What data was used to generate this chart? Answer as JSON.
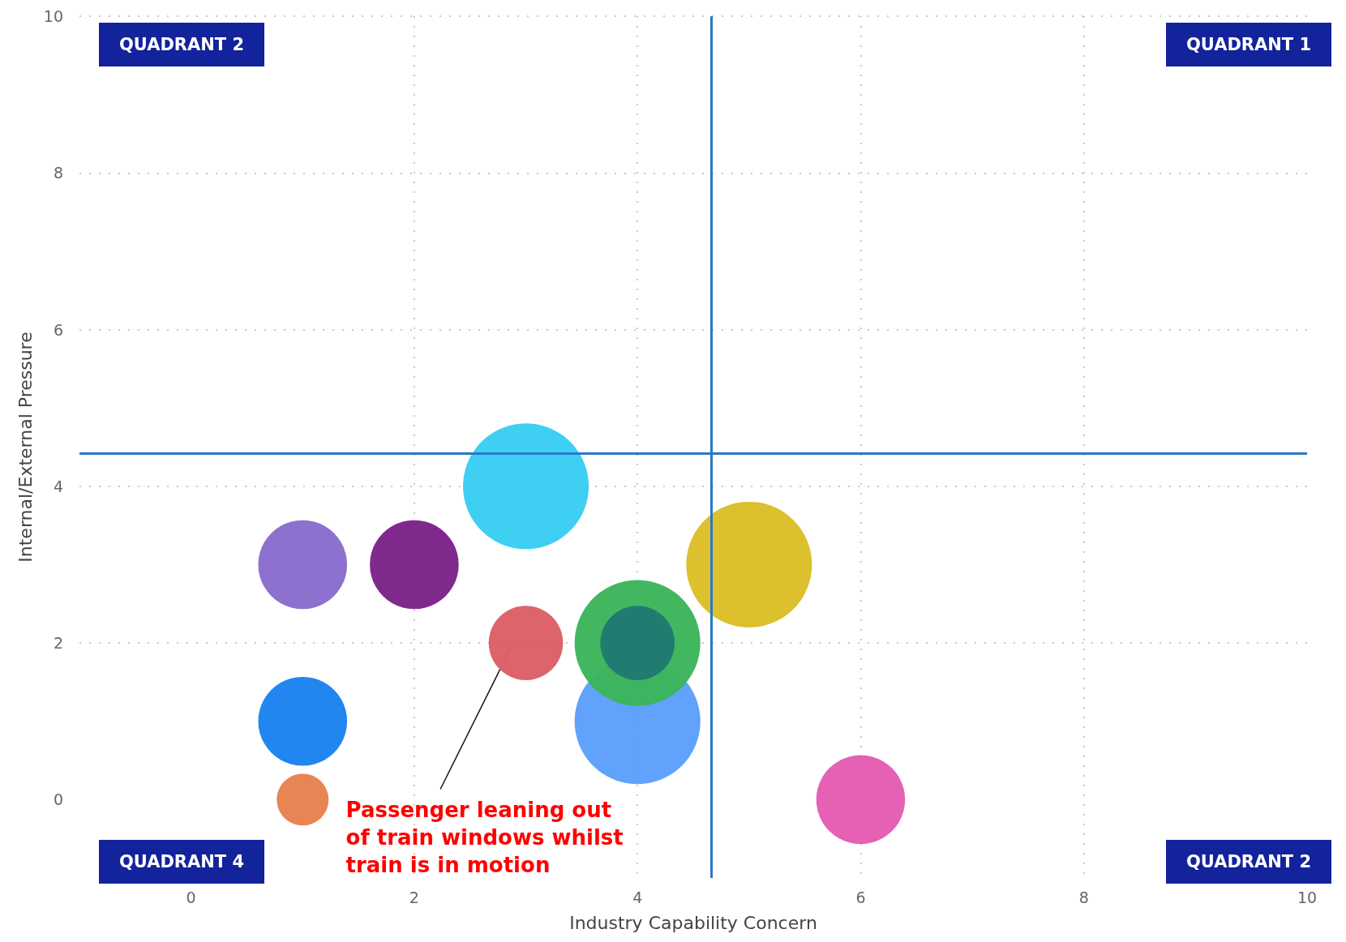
{
  "chart_data": {
    "type": "bubble",
    "xlabel": "Industry Capability Concern",
    "ylabel": "Internal/External Pressure",
    "x": [
      1,
      2,
      3,
      3,
      1,
      1,
      4,
      4,
      4,
      5,
      6
    ],
    "values": [
      3,
      3,
      4,
      2,
      1,
      0,
      1,
      2,
      2,
      3,
      0
    ],
    "sizes": [
      0.5,
      0.5,
      1,
      0.35,
      0.5,
      0.17,
      1,
      1,
      0.35,
      1,
      0.5
    ],
    "colors": [
      "#8a6bcc",
      "#7b2289",
      "#38cdf3",
      "#dc5f66",
      "#1a82f0",
      "#e8804f",
      "#5b9ffc",
      "#3cb55b",
      "#1f7a72",
      "#dbbe26",
      "#e35cb4"
    ],
    "xlim": [
      -1,
      10
    ],
    "xticks": [
      0,
      2,
      4,
      6,
      8,
      10
    ],
    "ylim": [
      -1,
      10
    ],
    "yticks": [
      0,
      2,
      4,
      6,
      8,
      10
    ],
    "grid": true,
    "marker": "circle",
    "ref_lines": [
      {
        "axis": "x",
        "value": 4.66,
        "color": "#2a78c8"
      },
      {
        "axis": "y",
        "value": 4.42,
        "color": "#2a78c8"
      }
    ],
    "annotations": [
      "QUADRANT 2",
      "QUADRANT 1",
      "QUADRANT 4",
      "QUADRANT 2",
      "Passenger leaning out\nof train windows whilst\ntrain is in motion"
    ]
  }
}
